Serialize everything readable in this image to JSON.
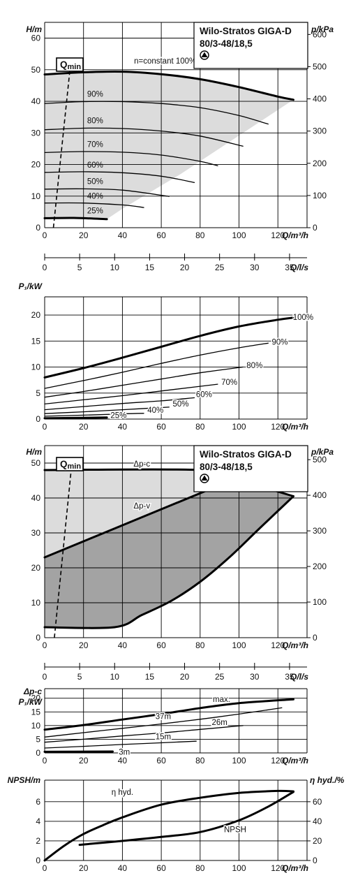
{
  "product_label": {
    "line1": "Wilo-Stratos GIGA-D",
    "line2": "80/3-48/18,5"
  },
  "colors": {
    "curve": "#000000",
    "grid": "#000000",
    "envelope_light": "#dcdcdc",
    "envelope_dark": "#a3a3a3"
  },
  "qmin_label": {
    "main": "Q",
    "sub": "min"
  },
  "chart_data": [
    {
      "id": "H_constant_speed",
      "type": "line",
      "ylabel": "H/m",
      "y2label": "p/kPa",
      "xlabel": "Q/m³/h",
      "xlim": [
        0,
        135
      ],
      "ylim": [
        0,
        65
      ],
      "y2lim": [
        0,
        637.6
      ],
      "xticks": [
        0,
        20,
        40,
        60,
        80,
        100,
        120
      ],
      "yticks": [
        0,
        10,
        20,
        30,
        40,
        50,
        60
      ],
      "y2ticks": [
        0,
        100,
        200,
        300,
        400,
        500,
        600
      ],
      "grid": true,
      "series": [
        {
          "name": "n=constant 100%",
          "bold": true,
          "x": [
            0,
            20,
            40,
            60,
            80,
            100,
            120,
            128
          ],
          "y": [
            48.5,
            49.2,
            49.4,
            48.6,
            47,
            44.5,
            41.5,
            40.5
          ]
        },
        {
          "name": "90%",
          "x": [
            0,
            20,
            40,
            60,
            80,
            100,
            115
          ],
          "y": [
            39.3,
            39.9,
            39.9,
            39.3,
            38,
            35.5,
            32.8
          ]
        },
        {
          "name": "80%",
          "x": [
            0,
            20,
            40,
            60,
            80,
            102
          ],
          "y": [
            31,
            31.5,
            31.4,
            30.6,
            29,
            25.8
          ]
        },
        {
          "name": "70%",
          "x": [
            0,
            20,
            40,
            60,
            80,
            89
          ],
          "y": [
            23.8,
            24.1,
            23.9,
            23,
            21,
            19.6
          ]
        },
        {
          "name": "60%",
          "x": [
            0,
            20,
            40,
            60,
            77
          ],
          "y": [
            17.5,
            17.7,
            17.4,
            16.3,
            14.3
          ]
        },
        {
          "name": "50%",
          "x": [
            0,
            20,
            40,
            64
          ],
          "y": [
            12.2,
            12.3,
            11.9,
            9.9
          ]
        },
        {
          "name": "40%",
          "x": [
            0,
            20,
            40,
            51
          ],
          "y": [
            7.8,
            7.8,
            7.2,
            6.4
          ]
        },
        {
          "name": "25%",
          "bold": true,
          "x": [
            0,
            15,
            32
          ],
          "y": [
            3,
            3.1,
            2.7
          ]
        }
      ],
      "qmin": {
        "x": [
          4.5,
          13
        ],
        "y": [
          0,
          50
        ]
      },
      "operating_range_shaded": true
    },
    {
      "id": "Q_ls_scale",
      "type": "axis",
      "xlabel": "Q/l/s",
      "xlim": [
        0,
        37.5
      ],
      "xticks": [
        0,
        5,
        10,
        15,
        20,
        25,
        30,
        35
      ]
    },
    {
      "id": "P1_constant_speed",
      "type": "line",
      "ylabel": "P₁/kW",
      "xlabel": "Q/m³/h",
      "xlim": [
        0,
        135
      ],
      "ylim": [
        0,
        23.5
      ],
      "xticks": [
        0,
        20,
        40,
        60,
        80,
        100,
        120
      ],
      "yticks": [
        0,
        5,
        10,
        15,
        20
      ],
      "grid": true,
      "series": [
        {
          "name": "100%",
          "bold": true,
          "x": [
            0,
            20,
            40,
            60,
            80,
            100,
            120,
            128
          ],
          "y": [
            8,
            9.8,
            11.8,
            13.9,
            16,
            17.8,
            19.1,
            19.5
          ]
        },
        {
          "name": "90%",
          "x": [
            0,
            20,
            40,
            60,
            80,
            100,
            115
          ],
          "y": [
            5.9,
            7.4,
            9,
            10.7,
            12.3,
            13.7,
            14.6
          ]
        },
        {
          "name": "80%",
          "x": [
            0,
            20,
            40,
            60,
            80,
            102
          ],
          "y": [
            4.2,
            5.3,
            6.5,
            7.7,
            8.9,
            10
          ]
        },
        {
          "name": "70%",
          "x": [
            0,
            20,
            40,
            60,
            80,
            89
          ],
          "y": [
            2.9,
            3.7,
            4.5,
            5.4,
            6.3,
            6.7
          ]
        },
        {
          "name": "60%",
          "x": [
            0,
            20,
            40,
            60,
            77
          ],
          "y": [
            1.8,
            2.4,
            3,
            3.5,
            4.1
          ]
        },
        {
          "name": "50%",
          "x": [
            0,
            20,
            40,
            64
          ],
          "y": [
            1.05,
            1.4,
            1.8,
            2.3
          ]
        },
        {
          "name": "40%",
          "x": [
            0,
            20,
            40,
            51
          ],
          "y": [
            0.55,
            0.75,
            1,
            1.1
          ]
        },
        {
          "name": "25%",
          "bold": true,
          "x": [
            0,
            15,
            32
          ],
          "y": [
            0.15,
            0.22,
            0.3
          ]
        }
      ]
    },
    {
      "id": "H_control_modes",
      "type": "area",
      "ylabel": "H/m",
      "y2label": "p/kPa",
      "xlabel": "Q/m³/h",
      "xlim": [
        0,
        135
      ],
      "ylim": [
        0,
        55
      ],
      "y2lim": [
        0,
        539.5
      ],
      "xticks": [
        0,
        20,
        40,
        60,
        80,
        100,
        120
      ],
      "yticks": [
        0,
        10,
        20,
        30,
        40,
        50
      ],
      "y2ticks": [
        0,
        100,
        200,
        300,
        400,
        500
      ],
      "grid": true,
      "series": [
        {
          "name": "Δp-c",
          "bold": true,
          "x": [
            0,
            82,
            98,
            110,
            128
          ],
          "y": [
            48,
            48,
            45.5,
            43.5,
            40.5
          ]
        },
        {
          "name": "Δp-v",
          "bold": true,
          "x": [
            0,
            98
          ],
          "y": [
            23,
            45.5
          ]
        },
        {
          "name": "",
          "bold": true,
          "x": [
            0,
            36,
            50,
            65,
            80,
            95,
            110,
            128
          ],
          "y": [
            3,
            3,
            6.5,
            10.5,
            16,
            23,
            31,
            40.5
          ]
        }
      ],
      "qmin": {
        "x": [
          5,
          14
        ],
        "y": [
          0,
          50
        ]
      }
    },
    {
      "id": "Q_ls_scale_2",
      "type": "axis",
      "xlabel": "Q/l/s",
      "xlim": [
        0,
        37.5
      ],
      "xticks": [
        0,
        5,
        10,
        15,
        20,
        25,
        30,
        35
      ]
    },
    {
      "id": "P1_dpc",
      "type": "line",
      "ylabel": "P₁/kW",
      "ylabel_top": "Δp-c",
      "xlabel": "Q/m³/h",
      "xlim": [
        0,
        135
      ],
      "ylim": [
        0,
        23.5
      ],
      "xticks": [
        0,
        20,
        40,
        60,
        80,
        100,
        120
      ],
      "yticks": [
        0,
        5,
        10,
        15,
        20
      ],
      "grid": true,
      "series": [
        {
          "name": "max.",
          "bold": true,
          "x": [
            0,
            20,
            40,
            60,
            80,
            100,
            128
          ],
          "y": [
            8.5,
            10.2,
            12.2,
            14.2,
            16.4,
            18.2,
            19.6
          ]
        },
        {
          "name": "37m",
          "x": [
            0,
            20,
            40,
            60,
            80,
            100,
            122
          ],
          "y": [
            5.8,
            7.4,
            9,
            10.6,
            12.3,
            14.2,
            16.5
          ]
        },
        {
          "name": "26m",
          "x": [
            0,
            20,
            40,
            60,
            80,
            102
          ],
          "y": [
            3.9,
            5,
            6.2,
            7.3,
            8.6,
            10
          ]
        },
        {
          "name": "15m",
          "x": [
            0,
            20,
            40,
            60,
            78
          ],
          "y": [
            1.8,
            2.4,
            3.1,
            3.7,
            4.3
          ]
        },
        {
          "name": "3m",
          "bold": true,
          "x": [
            0,
            15,
            35
          ],
          "y": [
            0.4,
            0.45,
            0.5
          ]
        }
      ]
    },
    {
      "id": "NPSH_eta",
      "type": "line",
      "ylabel": "NPSH/m",
      "y2label": "η hyd./%",
      "xlabel": "Q/m³/h",
      "xlim": [
        0,
        135
      ],
      "ylim": [
        0,
        8.2
      ],
      "y2lim": [
        0,
        82
      ],
      "xticks": [
        0,
        20,
        40,
        60,
        80,
        100,
        120
      ],
      "yticks": [
        0,
        2,
        4,
        6
      ],
      "y2ticks": [
        0,
        20,
        40,
        60
      ],
      "grid": true,
      "series": [
        {
          "name": "η hyd.",
          "bold": true,
          "axis": "y2",
          "x": [
            0,
            10,
            20,
            30,
            40,
            60,
            80,
            100,
            120,
            128
          ],
          "y": [
            0,
            15,
            27,
            36,
            44,
            57,
            64,
            69,
            71,
            70.5
          ]
        },
        {
          "name": "NPSH",
          "bold": true,
          "axis": "y",
          "x": [
            18,
            40,
            60,
            80,
            100,
            115,
            128
          ],
          "y": [
            1.6,
            2,
            2.4,
            2.9,
            4.1,
            5.5,
            7
          ]
        }
      ]
    }
  ]
}
